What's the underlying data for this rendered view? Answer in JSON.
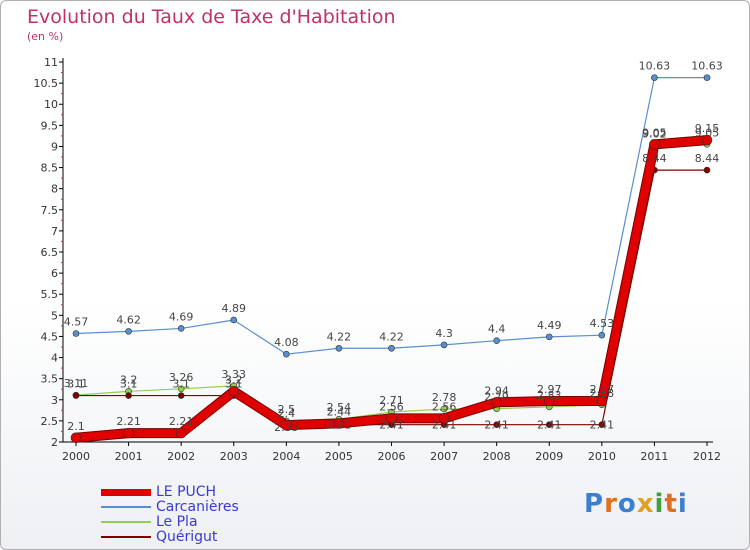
{
  "title": "Evolution du Taux de Taxe d'Habitation",
  "subtitle": "(en %)",
  "logo": "Proxiti",
  "chart_data": {
    "type": "line",
    "x": [
      "2000",
      "2001",
      "2002",
      "2003",
      "2004",
      "2005",
      "2006",
      "2007",
      "2008",
      "2009",
      "2010",
      "2011",
      "2012"
    ],
    "ylim": [
      2,
      11
    ],
    "yticks": [
      "2",
      "2.5",
      "3",
      "3.5",
      "4",
      "4.5",
      "5",
      "5.5",
      "6",
      "6.5",
      "7",
      "7.5",
      "8",
      "8.5",
      "9",
      "9.5",
      "10",
      "10.5",
      "11"
    ],
    "grid": false,
    "legend_position": "bottom-left",
    "series": [
      {
        "name": "LE PUCH",
        "color": "#e00000",
        "values": [
          2.1,
          2.21,
          2.21,
          3.2,
          2.4,
          2.44,
          2.56,
          2.56,
          2.94,
          2.97,
          2.97,
          9.05,
          9.15
        ],
        "labels": [
          "2.1",
          "2.21",
          "2.21",
          "3.2",
          "2.4",
          "2.44",
          "2.56",
          "2.56",
          "2.94",
          "2.97",
          "2.97",
          "9.05",
          "9.15"
        ]
      },
      {
        "name": "Carcanières",
        "color": "#5a8fcf",
        "values": [
          4.57,
          4.62,
          4.69,
          4.89,
          4.08,
          4.22,
          4.22,
          4.3,
          4.4,
          4.49,
          4.53,
          10.63,
          10.63
        ],
        "labels": [
          "4.57",
          "4.62",
          "4.69",
          "4.89",
          "4.08",
          "4.22",
          "4.22",
          "4.3",
          "4.4",
          "4.49",
          "4.53",
          "10.63",
          "10.63"
        ]
      },
      {
        "name": "Le Pla",
        "color": "#90d050",
        "values": [
          3.11,
          3.2,
          3.26,
          3.33,
          2.5,
          2.54,
          2.71,
          2.78,
          2.79,
          2.83,
          2.88,
          9.02,
          9.05
        ],
        "labels": [
          "3.11",
          "3.2",
          "3.26",
          "3.33",
          "2.5",
          "2.54",
          "2.71",
          "2.78",
          "2.79",
          "2.83",
          "2.88",
          "9.02",
          "9.05"
        ]
      },
      {
        "name": "Quérigut",
        "color": "#800000",
        "values": [
          3.1,
          3.1,
          3.1,
          3.1,
          2.35,
          2.41,
          2.41,
          2.41,
          2.41,
          2.41,
          2.41,
          8.44,
          8.44
        ],
        "labels": [
          "3.1",
          "3.1",
          "3.1",
          "3.1",
          "2.35",
          "2.41",
          "2.41",
          "2.41",
          "2.41",
          "2.41",
          "2.41",
          "8.44",
          "8.44"
        ]
      }
    ]
  }
}
